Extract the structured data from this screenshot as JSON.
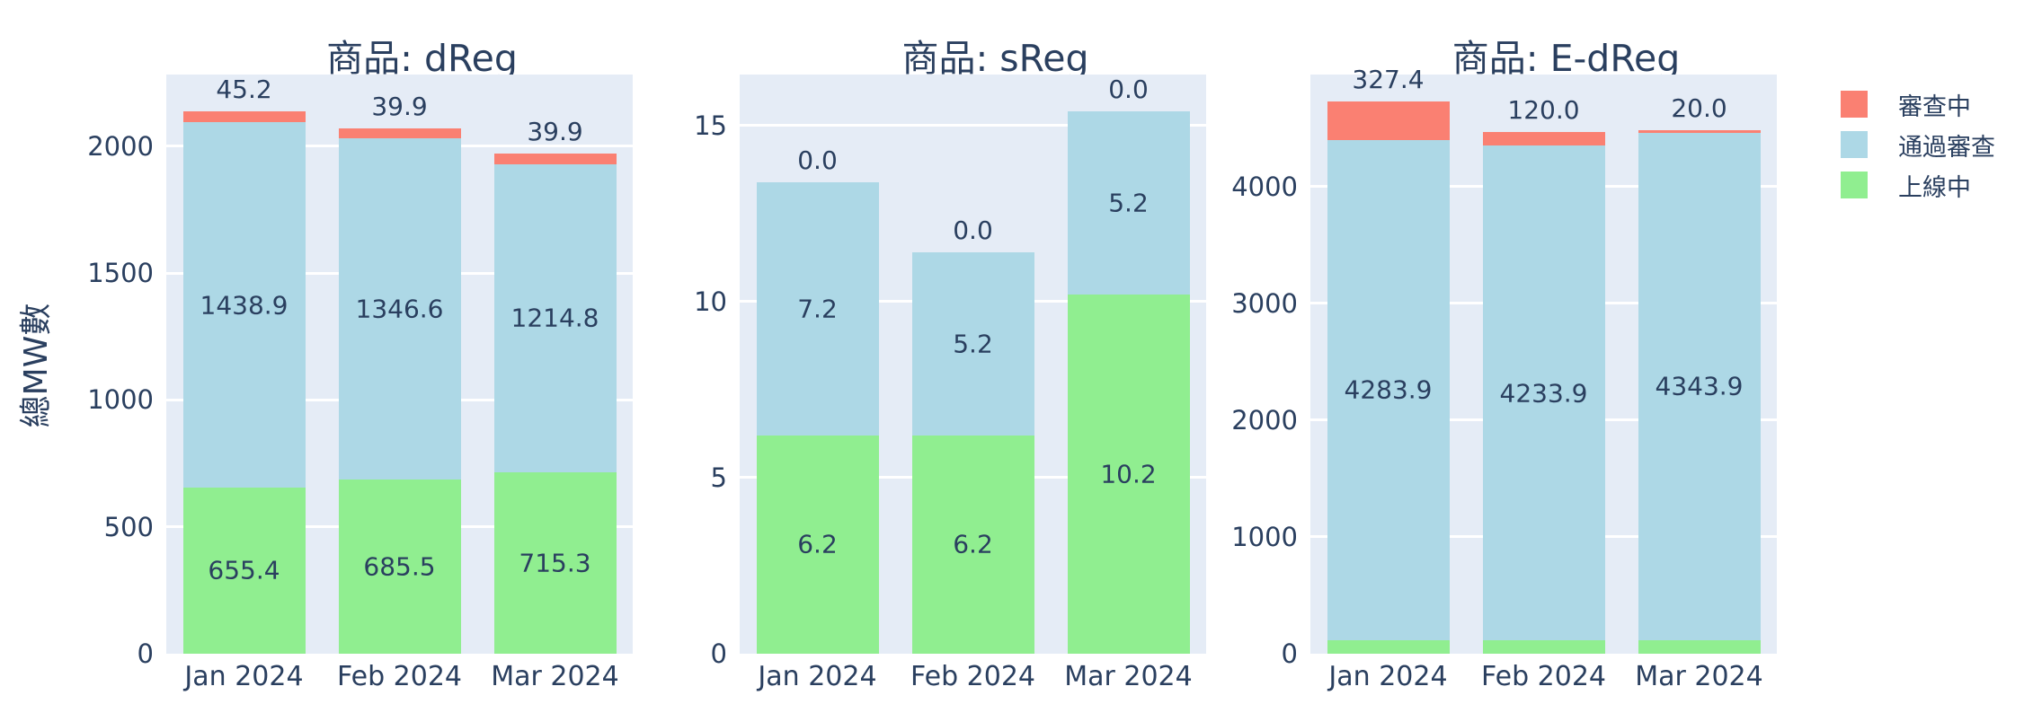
{
  "figure": {
    "y_axis_title": "總MW數",
    "background_color": "#FFFFFF",
    "plot_background_color": "#E5ECF6",
    "grid_color": "#FFFFFF",
    "text_color": "#2A3F5F"
  },
  "legend": {
    "position": "top-right",
    "items": [
      {
        "key": "reviewing",
        "label": "審查中",
        "color": "#FA8072"
      },
      {
        "key": "passed",
        "label": "通過審查",
        "color": "#ADD8E6"
      },
      {
        "key": "online",
        "label": "上線中",
        "color": "#90EE90"
      }
    ]
  },
  "chart_data": [
    {
      "type": "bar",
      "stacked": true,
      "title": "商品: dReg",
      "categories": [
        "Jan 2024",
        "Feb 2024",
        "Mar 2024"
      ],
      "series": [
        {
          "key": "online",
          "name": "上線中",
          "color": "#90EE90",
          "values": [
            655.4,
            685.5,
            715.3
          ]
        },
        {
          "key": "passed",
          "name": "通過審查",
          "color": "#ADD8E6",
          "values": [
            1438.9,
            1346.6,
            1214.8
          ]
        },
        {
          "key": "reviewing",
          "name": "審查中",
          "color": "#FA8072",
          "values": [
            45.2,
            39.9,
            39.9
          ]
        }
      ],
      "xlabel": "",
      "ylabel": "總MW數",
      "ylim": [
        0,
        2283
      ],
      "yticks": [
        0,
        500,
        1000,
        1500,
        2000
      ],
      "grid": true
    },
    {
      "type": "bar",
      "stacked": true,
      "title": "商品: sReg",
      "categories": [
        "Jan 2024",
        "Feb 2024",
        "Mar 2024"
      ],
      "series": [
        {
          "key": "online",
          "name": "上線中",
          "color": "#90EE90",
          "values": [
            6.2,
            6.2,
            10.2
          ]
        },
        {
          "key": "passed",
          "name": "通過審查",
          "color": "#ADD8E6",
          "values": [
            7.2,
            5.2,
            5.2
          ]
        },
        {
          "key": "reviewing",
          "name": "審查中",
          "color": "#FA8072",
          "values": [
            0.0,
            0.0,
            0.0
          ]
        }
      ],
      "xlabel": "",
      "ylabel": "總MW數",
      "ylim": [
        0,
        16.45
      ],
      "yticks": [
        0,
        5,
        10,
        15
      ],
      "grid": true
    },
    {
      "type": "bar",
      "stacked": true,
      "title": "商品: E-dReg",
      "categories": [
        "Jan 2024",
        "Feb 2024",
        "Mar 2024"
      ],
      "series": [
        {
          "key": "online",
          "name": "上線中",
          "color": "#90EE90",
          "values": [
            116.0,
            116.0,
            116.0
          ]
        },
        {
          "key": "passed",
          "name": "通過審查",
          "color": "#ADD8E6",
          "values": [
            4283.9,
            4233.9,
            4343.9
          ]
        },
        {
          "key": "reviewing",
          "name": "審查中",
          "color": "#FA8072",
          "values": [
            327.4,
            120.0,
            20.0
          ]
        }
      ],
      "xlabel": "",
      "ylabel": "總MW數",
      "ylim": [
        0,
        4960
      ],
      "yticks": [
        0,
        1000,
        2000,
        3000,
        4000
      ],
      "grid": true
    }
  ]
}
